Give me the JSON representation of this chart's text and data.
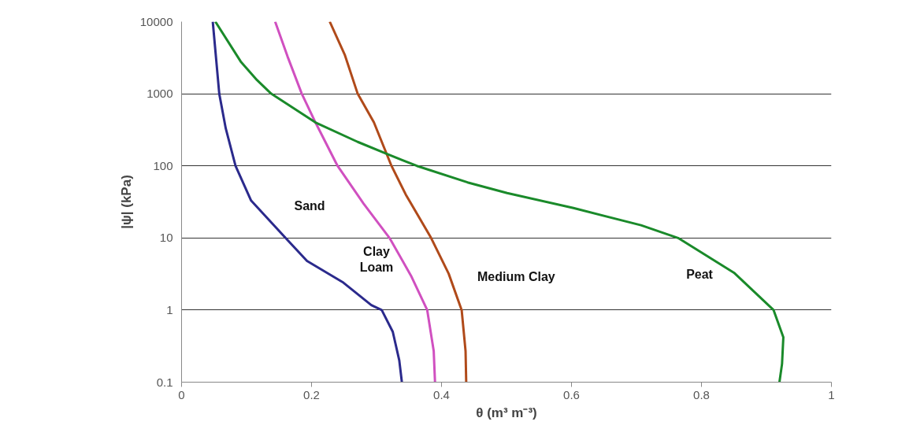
{
  "chart_data": {
    "type": "line",
    "xlabel": "θ (m³ m⁻³)",
    "ylabel": "|ψ| (kPa)",
    "log": "y",
    "grid": "y",
    "line_style": "solid",
    "marker": "none",
    "xlim": [
      0,
      1
    ],
    "xticks": [
      0,
      0.2,
      0.4,
      0.6,
      0.8,
      1
    ],
    "ylim": [
      0.1,
      10000
    ],
    "yticks": [
      0.1,
      1,
      10,
      100,
      1000,
      10000
    ],
    "series": [
      {
        "name": "Sand",
        "color": "#2b2a8c",
        "x": [
          0.048,
          0.058,
          0.068,
          0.083,
          0.107,
          0.16,
          0.193,
          0.249,
          0.292,
          0.308,
          0.325,
          0.335,
          0.339
        ],
        "values": [
          10000,
          1000,
          330,
          100,
          33,
          10,
          4.8,
          2.4,
          1.17,
          1,
          0.5,
          0.2,
          0.1
        ]
      },
      {
        "name": "Clay\nLoam",
        "color": "#d050c0",
        "x": [
          0.144,
          0.163,
          0.185,
          0.206,
          0.24,
          0.28,
          0.32,
          0.353,
          0.378,
          0.388,
          0.39
        ],
        "values": [
          10000,
          3300,
          1000,
          400,
          100,
          30,
          10,
          3,
          1,
          0.27,
          0.1
        ]
      },
      {
        "name": "Medium Clay",
        "color": "#b04a1a",
        "x": [
          0.228,
          0.251,
          0.271,
          0.296,
          0.323,
          0.345,
          0.384,
          0.411,
          0.431,
          0.437,
          0.438
        ],
        "values": [
          10000,
          3500,
          1000,
          400,
          100,
          40,
          10,
          3.2,
          1,
          0.27,
          0.1
        ]
      },
      {
        "name": "Peat",
        "color": "#1a8a2a",
        "x": [
          0.052,
          0.091,
          0.116,
          0.138,
          0.206,
          0.271,
          0.317,
          0.362,
          0.44,
          0.501,
          0.603,
          0.707,
          0.764,
          0.85,
          0.911,
          0.926,
          0.924,
          0.92
        ],
        "values": [
          10000,
          2800,
          1550,
          1000,
          400,
          215,
          145,
          100,
          59,
          42,
          26,
          15,
          10,
          3.3,
          1,
          0.42,
          0.18,
          0.1
        ]
      }
    ]
  }
}
